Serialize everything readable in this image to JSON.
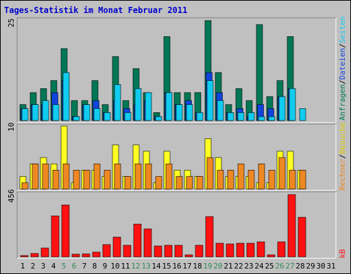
{
  "title": "Tages-Statistik im Monat Februar 2011",
  "colors": {
    "background": "#C0C0C0",
    "title": "#0000CC",
    "anfragen": "#007755",
    "dateien": "#1144DD",
    "seiten": "#11CCEE",
    "besuche": "#FFFF22",
    "rechner": "#EE8822",
    "kb": "#FF1111",
    "weekend_label": "#338855",
    "weekday_label": "#000000"
  },
  "chart_data": [
    {
      "type": "bar",
      "title": "Tages-Statistik im Monat Februar 2011",
      "panel": "top",
      "y_max_label": "25",
      "ylim": [
        0,
        25
      ],
      "categories": [
        "1",
        "2",
        "3",
        "4",
        "5",
        "6",
        "7",
        "8",
        "9",
        "10",
        "11",
        "12",
        "13",
        "14",
        "15",
        "16",
        "17",
        "18",
        "19",
        "20",
        "21",
        "22",
        "23",
        "24",
        "25",
        "26",
        "27",
        "28",
        "29",
        "30",
        "31"
      ],
      "right_label_parts": [
        {
          "text": "Anfragen",
          "color": "#007755"
        },
        {
          "text": "/",
          "color": "#000000"
        },
        {
          "text": "Dateien",
          "color": "#1144DD"
        },
        {
          "text": "/",
          "color": "#000000"
        },
        {
          "text": "Seiten",
          "color": "#11CCEE"
        }
      ],
      "series": [
        {
          "name": "Anfragen",
          "color": "#007755",
          "values": [
            4,
            7,
            8,
            10,
            18,
            5,
            5,
            10,
            4,
            16,
            5,
            13,
            7,
            2,
            21,
            7,
            7,
            7,
            25,
            12,
            4,
            8,
            5,
            24,
            6,
            10,
            21,
            null,
            null,
            null,
            null
          ]
        },
        {
          "name": "Dateien",
          "color": "#1144DD",
          "values": [
            3,
            4,
            4,
            7,
            10,
            1,
            4,
            5,
            2,
            5,
            3,
            4,
            5,
            1,
            7,
            4,
            5,
            2,
            12,
            7,
            2,
            3,
            1,
            4,
            3,
            6,
            8,
            null,
            null,
            null,
            null
          ]
        },
        {
          "name": "Seiten",
          "color": "#11CCEE",
          "values": [
            3,
            4,
            5,
            4,
            12,
            1,
            4,
            3,
            2,
            9,
            2,
            8,
            7,
            1,
            7,
            4,
            4,
            2,
            10,
            5,
            2,
            2,
            2,
            1,
            1,
            6,
            8,
            3,
            null,
            null,
            null
          ]
        }
      ]
    },
    {
      "type": "bar",
      "panel": "middle",
      "y_max_label": "10",
      "ylim": [
        0,
        10
      ],
      "categories": [
        "1",
        "2",
        "3",
        "4",
        "5",
        "6",
        "7",
        "8",
        "9",
        "10",
        "11",
        "12",
        "13",
        "14",
        "15",
        "16",
        "17",
        "18",
        "19",
        "20",
        "21",
        "22",
        "23",
        "24",
        "25",
        "26",
        "27",
        "28",
        "29",
        "30",
        "31"
      ],
      "right_label_parts": [
        {
          "text": "Rechner",
          "color": "#EE8822"
        },
        {
          "text": "/",
          "color": "#000000"
        },
        {
          "text": "Besuche",
          "color": "#DDCC00"
        }
      ],
      "series": [
        {
          "name": "Besuche",
          "color": "#FFFF22",
          "values": [
            2,
            4,
            5,
            4,
            10,
            1,
            3,
            3,
            2,
            7,
            2,
            7,
            6,
            1,
            6,
            3,
            3,
            2,
            8,
            5,
            2,
            2,
            2,
            1,
            1,
            6,
            6,
            3,
            null,
            null,
            null
          ]
        },
        {
          "name": "Rechner",
          "color": "#EE8822",
          "values": [
            1,
            4,
            4,
            3,
            4,
            3,
            3,
            4,
            3,
            4,
            2,
            4,
            4,
            2,
            4,
            2,
            2,
            2,
            5,
            3,
            3,
            4,
            3,
            4,
            3,
            5,
            3,
            3,
            null,
            null,
            null
          ]
        }
      ]
    },
    {
      "type": "bar",
      "panel": "bottom",
      "y_max_label": "456",
      "ylim": [
        0,
        456
      ],
      "categories": [
        "1",
        "2",
        "3",
        "4",
        "5",
        "6",
        "7",
        "8",
        "9",
        "10",
        "11",
        "12",
        "13",
        "14",
        "15",
        "16",
        "17",
        "18",
        "19",
        "20",
        "21",
        "22",
        "23",
        "24",
        "25",
        "26",
        "27",
        "28",
        "29",
        "30",
        "31"
      ],
      "right_label_parts": [
        {
          "text": "kB",
          "color": "#FF1111"
        }
      ],
      "series": [
        {
          "name": "kB",
          "color": "#FF1111",
          "values": [
            10,
            25,
            65,
            300,
            380,
            20,
            22,
            35,
            90,
            145,
            85,
            240,
            205,
            80,
            85,
            85,
            15,
            85,
            295,
            100,
            95,
            100,
            100,
            110,
            15,
            110,
            456,
            290,
            null,
            null,
            null
          ]
        }
      ]
    }
  ],
  "day_labels": [
    {
      "text": "1",
      "weekend": false
    },
    {
      "text": "2",
      "weekend": false
    },
    {
      "text": "3",
      "weekend": false
    },
    {
      "text": "4",
      "weekend": false
    },
    {
      "text": "5",
      "weekend": true
    },
    {
      "text": "6",
      "weekend": true
    },
    {
      "text": "7",
      "weekend": false
    },
    {
      "text": "8",
      "weekend": false
    },
    {
      "text": "9",
      "weekend": false
    },
    {
      "text": "10",
      "weekend": false
    },
    {
      "text": "11",
      "weekend": false
    },
    {
      "text": "12",
      "weekend": true
    },
    {
      "text": "13",
      "weekend": true
    },
    {
      "text": "14",
      "weekend": false
    },
    {
      "text": "15",
      "weekend": false
    },
    {
      "text": "16",
      "weekend": false
    },
    {
      "text": "17",
      "weekend": false
    },
    {
      "text": "18",
      "weekend": false
    },
    {
      "text": "19",
      "weekend": true
    },
    {
      "text": "20",
      "weekend": true
    },
    {
      "text": "21",
      "weekend": false
    },
    {
      "text": "22",
      "weekend": false
    },
    {
      "text": "23",
      "weekend": false
    },
    {
      "text": "24",
      "weekend": false
    },
    {
      "text": "25",
      "weekend": false
    },
    {
      "text": "26",
      "weekend": true
    },
    {
      "text": "27",
      "weekend": true
    },
    {
      "text": "28",
      "weekend": false
    },
    {
      "text": "29",
      "weekend": false
    },
    {
      "text": "30",
      "weekend": false
    },
    {
      "text": "31",
      "weekend": false
    }
  ]
}
